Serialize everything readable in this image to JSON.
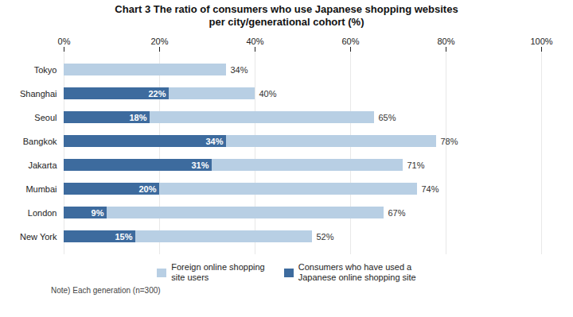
{
  "chart_data": {
    "type": "bar",
    "orientation": "horizontal",
    "stacked": false,
    "title": "Chart 3 The ratio of consumers who use Japanese shopping websites\nper city/generational cohort (%)",
    "categories": [
      "Tokyo",
      "Shanghai",
      "Seoul",
      "Bangkok",
      "Jakarta",
      "Mumbai",
      "London",
      "New York"
    ],
    "series": [
      {
        "name": "Foreign online shopping\nsite users",
        "color": "#b8cfe4",
        "values": [
          34,
          40,
          65,
          78,
          71,
          74,
          67,
          52
        ],
        "value_labels": [
          "34%",
          "40%",
          "65%",
          "78%",
          "71%",
          "74%",
          "67%",
          "52%"
        ]
      },
      {
        "name": "Consumers who have used a\nJapanese online shopping site",
        "color": "#3d6b9e",
        "values": [
          0,
          22,
          18,
          34,
          31,
          20,
          9,
          15
        ],
        "value_labels": [
          null,
          "22%",
          "18%",
          "34%",
          "31%",
          "20%",
          "9%",
          "15%"
        ]
      }
    ],
    "xlim": [
      0,
      100
    ],
    "xticks": [
      {
        "value": 0,
        "label": "0%"
      },
      {
        "value": 20,
        "label": "20%"
      },
      {
        "value": 40,
        "label": "40%"
      },
      {
        "value": 60,
        "label": "60%"
      },
      {
        "value": 80,
        "label": "80%"
      },
      {
        "value": 100,
        "label": "100%"
      }
    ],
    "grid": true,
    "legend": "bottom",
    "data_labels": true,
    "annotations": [
      "Note) Each generation (n=300)"
    ]
  }
}
